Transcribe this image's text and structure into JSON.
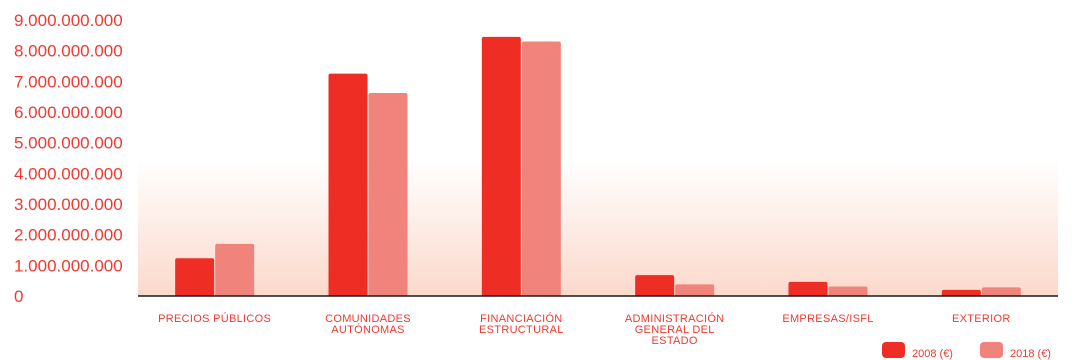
{
  "chart_data": {
    "type": "bar",
    "categories": [
      [
        "PRECIOS PÚBLICOS"
      ],
      [
        "COMUNIDADES",
        "AUTÓNOMAS"
      ],
      [
        "FINANCIACIÓN",
        "ESTRUCTURAL"
      ],
      [
        "ADMINISTRACIÓN",
        "GENERAL DEL",
        "ESTADO"
      ],
      [
        "EMPRESAS/ISFL"
      ],
      [
        "EXTERIOR"
      ]
    ],
    "series": [
      {
        "name": "2008 (€)",
        "color": "#ee2d24",
        "values": [
          1230000000,
          7250000000,
          8450000000,
          680000000,
          460000000,
          200000000
        ]
      },
      {
        "name": "2018 (€)",
        "color": "#f0837b",
        "values": [
          1700000000,
          6620000000,
          8300000000,
          380000000,
          310000000,
          280000000
        ]
      }
    ],
    "yticks": [
      "0",
      "1.000.000.000",
      "2.000.000.000",
      "3.000.000.000",
      "4.000.000.000",
      "5.000.000.000",
      "6.000.000.000",
      "7.000.000.000",
      "8.000.000.000",
      "9.000.000.000"
    ],
    "ylim": [
      0,
      9000000000
    ],
    "title": "",
    "xlabel": "",
    "ylabel": "",
    "legend_position": "bottom-right",
    "grid": false,
    "background_gradient": [
      "#ffffff",
      "#fbd9cb"
    ]
  }
}
